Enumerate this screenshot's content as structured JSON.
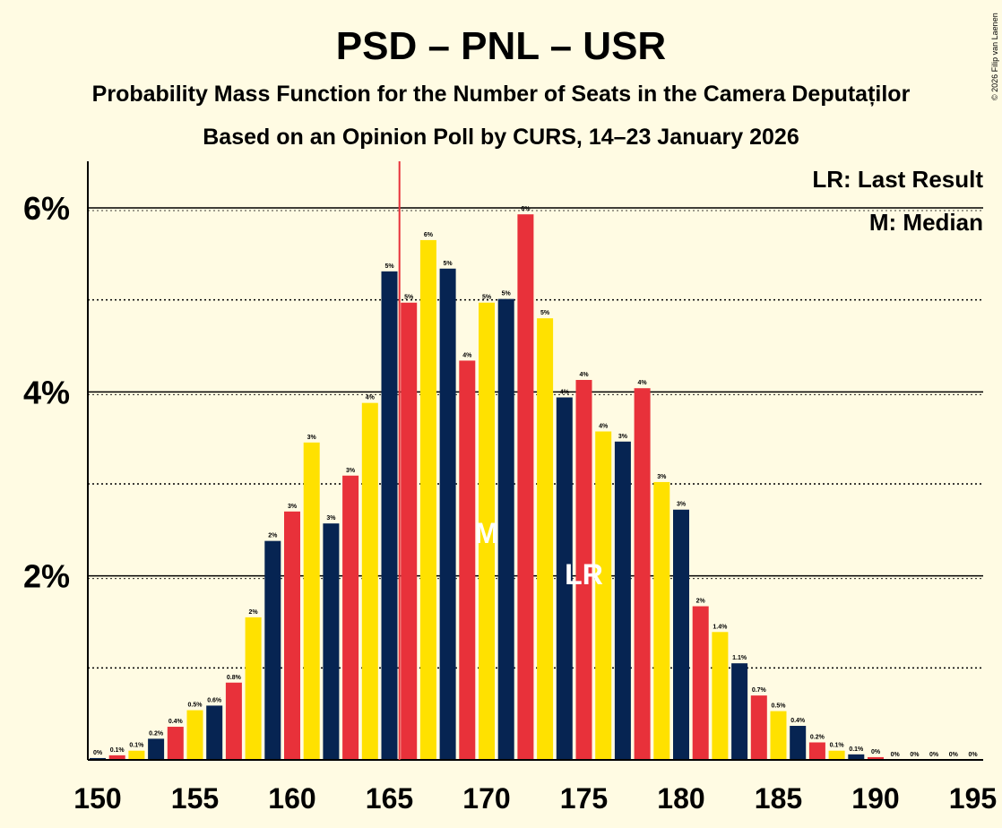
{
  "chart_data": {
    "type": "bar",
    "title": "PSD – PNL – USR",
    "subtitle_1": "Probability Mass Function for the Number of Seats in the Camera Deputaților",
    "subtitle_2": "Based on an Opinion Poll by CURS, 14–23 January 2026",
    "copyright": "© 2026 Filip van Laenen",
    "legend": {
      "lr": "LR: Last Result",
      "m": "M: Median"
    },
    "markers": {
      "median_label": "M",
      "median_seat": 170,
      "last_result_label": "LR",
      "last_result_seat": 175
    },
    "majority_line_seat": 166,
    "x": [
      150,
      151,
      152,
      153,
      154,
      155,
      156,
      157,
      158,
      159,
      160,
      161,
      162,
      163,
      164,
      165,
      166,
      167,
      168,
      169,
      170,
      171,
      172,
      173,
      174,
      175,
      176,
      177,
      178,
      179,
      180,
      181,
      182,
      183,
      184,
      185,
      186,
      187,
      188,
      189,
      190,
      191,
      192,
      193,
      194,
      195
    ],
    "values": [
      0.02,
      0.05,
      0.1,
      0.23,
      0.36,
      0.54,
      0.59,
      0.84,
      1.55,
      2.38,
      2.7,
      3.45,
      2.57,
      3.09,
      3.88,
      5.31,
      4.97,
      5.65,
      5.34,
      4.34,
      4.97,
      5.01,
      5.93,
      4.8,
      3.94,
      4.13,
      3.57,
      3.46,
      4.04,
      3.02,
      2.72,
      1.67,
      1.39,
      1.05,
      0.7,
      0.53,
      0.37,
      0.19,
      0.1,
      0.06,
      0.03,
      0,
      0,
      0,
      0,
      0
    ],
    "value_labels": [
      "0%",
      "0.1%",
      "0.1%",
      "0.2%",
      "0.4%",
      "0.5%",
      "0.6%",
      "0.8%",
      "2%",
      "2%",
      "3%",
      "3%",
      "3%",
      "3%",
      "4%",
      "5%",
      "5%",
      "6%",
      "5%",
      "4%",
      "5%",
      "5%",
      "6%",
      "5%",
      "4%",
      "4%",
      "4%",
      "3%",
      "4%",
      "3%",
      "3%",
      "2%",
      "1.4%",
      "1.1%",
      "0.7%",
      "0.5%",
      "0.4%",
      "0.2%",
      "0.1%",
      "0.1%",
      "0%",
      "0%",
      "0%",
      "0%",
      "0%",
      "0%"
    ],
    "xticks": [
      "150",
      "155",
      "160",
      "165",
      "170",
      "175",
      "180",
      "185",
      "190",
      "195"
    ],
    "yticks": [
      {
        "value": 2,
        "label": "2%"
      },
      {
        "value": 4,
        "label": "4%"
      },
      {
        "value": 6,
        "label": "6%"
      }
    ],
    "ylim": [
      0,
      6.5
    ],
    "colors": {
      "psd": "#e8313a",
      "pnl": "#ffe100",
      "usr": "#062452",
      "background": "#fffbe3",
      "majority": "#e8313a"
    },
    "color_cycle": [
      "usr",
      "psd",
      "pnl"
    ]
  }
}
